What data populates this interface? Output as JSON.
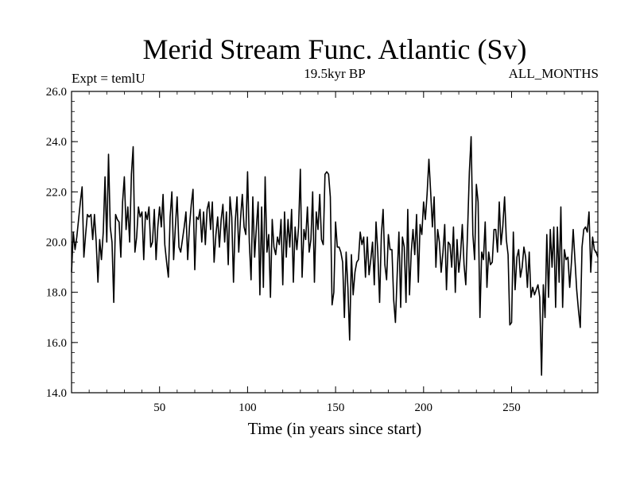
{
  "chart_data": {
    "type": "line",
    "title": "Merid Stream Func. Atlantic (Sv)",
    "subtitle_left": "Expt = temlU",
    "subtitle_center": "19.5kyr BP",
    "subtitle_right": "ALL_MONTHS",
    "xlabel": "Time (in years since start)",
    "ylabel": "",
    "xlim": [
      0,
      299
    ],
    "ylim": [
      14.0,
      26.0
    ],
    "xticks": [
      50,
      100,
      150,
      200,
      250
    ],
    "yticks": [
      14.0,
      16.0,
      18.0,
      20.0,
      22.0,
      24.0,
      26.0
    ],
    "ytick_labels": [
      "14.0",
      "16.0",
      "18.0",
      "20.0",
      "22.0",
      "24.0",
      "26.0"
    ],
    "series": [
      {
        "name": "Merid Stream Func. Atlantic",
        "anchors": [
          [
            0,
            18.8
          ],
          [
            1,
            20.4
          ],
          [
            2,
            19.7
          ],
          [
            3,
            20.2
          ],
          [
            5,
            21.6
          ],
          [
            6,
            22.2
          ],
          [
            7,
            19.4
          ],
          [
            8,
            20.3
          ],
          [
            9,
            21.1
          ],
          [
            10,
            21.0
          ],
          [
            11,
            21.1
          ],
          [
            12,
            20.1
          ],
          [
            13,
            21.1
          ],
          [
            14,
            20.0
          ],
          [
            15,
            18.4
          ],
          [
            16,
            20.1
          ],
          [
            17,
            19.3
          ],
          [
            18,
            20.4
          ],
          [
            19,
            22.6
          ],
          [
            20,
            20.0
          ],
          [
            21,
            23.5
          ],
          [
            22,
            20.6
          ],
          [
            23,
            20.0
          ],
          [
            24,
            17.6
          ],
          [
            25,
            21.1
          ],
          [
            26,
            20.9
          ],
          [
            27,
            20.8
          ],
          [
            28,
            19.4
          ],
          [
            29,
            21.6
          ],
          [
            30,
            22.6
          ],
          [
            31,
            20.5
          ],
          [
            32,
            21.4
          ],
          [
            33,
            20.0
          ],
          [
            34,
            22.7
          ],
          [
            35,
            23.8
          ],
          [
            36,
            19.6
          ],
          [
            37,
            20.2
          ],
          [
            38,
            21.4
          ],
          [
            39,
            21.0
          ],
          [
            40,
            21.2
          ],
          [
            41,
            19.3
          ],
          [
            42,
            21.2
          ],
          [
            43,
            20.9
          ],
          [
            44,
            21.4
          ],
          [
            45,
            19.8
          ],
          [
            46,
            20.0
          ],
          [
            47,
            21.3
          ],
          [
            48,
            19.3
          ],
          [
            49,
            20.6
          ],
          [
            50,
            21.4
          ],
          [
            51,
            20.6
          ],
          [
            52,
            21.9
          ],
          [
            53,
            19.9
          ],
          [
            54,
            19.2
          ],
          [
            55,
            18.6
          ],
          [
            56,
            21.0
          ],
          [
            57,
            22.0
          ],
          [
            58,
            19.3
          ],
          [
            59,
            20.6
          ],
          [
            60,
            21.8
          ],
          [
            61,
            19.8
          ],
          [
            62,
            19.6
          ],
          [
            63,
            20.1
          ],
          [
            64,
            20.6
          ],
          [
            65,
            21.2
          ],
          [
            66,
            19.3
          ],
          [
            67,
            20.6
          ],
          [
            68,
            21.5
          ],
          [
            69,
            22.1
          ],
          [
            70,
            18.9
          ],
          [
            71,
            21.0
          ],
          [
            72,
            20.9
          ],
          [
            73,
            21.3
          ],
          [
            74,
            20.0
          ],
          [
            75,
            21.2
          ],
          [
            76,
            19.9
          ],
          [
            77,
            21.3
          ],
          [
            78,
            21.6
          ],
          [
            79,
            20.5
          ],
          [
            80,
            21.6
          ],
          [
            81,
            19.2
          ],
          [
            82,
            20.3
          ],
          [
            83,
            21.0
          ],
          [
            84,
            19.8
          ],
          [
            85,
            20.9
          ],
          [
            86,
            21.5
          ],
          [
            87,
            20.0
          ],
          [
            88,
            21.2
          ],
          [
            89,
            19.1
          ],
          [
            90,
            21.8
          ],
          [
            91,
            21.0
          ],
          [
            92,
            18.4
          ],
          [
            93,
            20.8
          ],
          [
            94,
            21.8
          ],
          [
            95,
            19.6
          ],
          [
            96,
            20.9
          ],
          [
            97,
            21.9
          ],
          [
            98,
            20.6
          ],
          [
            99,
            20.3
          ],
          [
            100,
            22.8
          ],
          [
            101,
            20.0
          ],
          [
            102,
            18.5
          ],
          [
            103,
            21.8
          ],
          [
            104,
            19.4
          ],
          [
            105,
            20.6
          ],
          [
            106,
            21.6
          ],
          [
            107,
            17.9
          ],
          [
            108,
            21.4
          ],
          [
            109,
            18.2
          ],
          [
            110,
            22.6
          ],
          [
            111,
            19.6
          ],
          [
            112,
            20.3
          ],
          [
            113,
            17.8
          ],
          [
            114,
            20.9
          ],
          [
            115,
            19.8
          ],
          [
            116,
            19.5
          ],
          [
            117,
            20.2
          ],
          [
            118,
            19.9
          ],
          [
            119,
            20.9
          ],
          [
            120,
            18.3
          ],
          [
            121,
            21.2
          ],
          [
            122,
            19.4
          ],
          [
            123,
            20.9
          ],
          [
            124,
            19.8
          ],
          [
            125,
            21.3
          ],
          [
            126,
            18.4
          ],
          [
            127,
            20.6
          ],
          [
            128,
            19.7
          ],
          [
            129,
            20.6
          ],
          [
            130,
            22.9
          ],
          [
            131,
            18.6
          ],
          [
            132,
            20.5
          ],
          [
            133,
            20.1
          ],
          [
            134,
            21.4
          ],
          [
            135,
            19.6
          ],
          [
            136,
            20.1
          ],
          [
            137,
            22.0
          ],
          [
            138,
            18.4
          ],
          [
            139,
            21.2
          ],
          [
            140,
            20.5
          ],
          [
            141,
            21.9
          ],
          [
            142,
            20.1
          ],
          [
            143,
            19.9
          ],
          [
            144,
            22.7
          ],
          [
            145,
            22.8
          ],
          [
            146,
            22.7
          ],
          [
            147,
            21.8
          ],
          [
            148,
            17.5
          ],
          [
            149,
            18.0
          ],
          [
            150,
            20.8
          ],
          [
            151,
            19.8
          ],
          [
            152,
            19.8
          ],
          [
            153,
            19.6
          ],
          [
            154,
            19.2
          ],
          [
            155,
            17.0
          ],
          [
            156,
            19.6
          ],
          [
            157,
            18.2
          ],
          [
            158,
            16.1
          ],
          [
            159,
            19.5
          ],
          [
            160,
            17.9
          ],
          [
            161,
            18.8
          ],
          [
            162,
            19.2
          ],
          [
            163,
            19.3
          ],
          [
            164,
            20.4
          ],
          [
            165,
            19.9
          ],
          [
            166,
            20.2
          ],
          [
            167,
            18.6
          ],
          [
            168,
            20.2
          ],
          [
            169,
            18.7
          ],
          [
            170,
            19.3
          ],
          [
            171,
            20.0
          ],
          [
            172,
            18.3
          ],
          [
            173,
            20.8
          ],
          [
            174,
            19.6
          ],
          [
            175,
            17.6
          ],
          [
            176,
            20.3
          ],
          [
            177,
            21.3
          ],
          [
            178,
            19.1
          ],
          [
            179,
            18.5
          ],
          [
            180,
            20.3
          ],
          [
            181,
            19.7
          ],
          [
            182,
            19.7
          ],
          [
            183,
            17.7
          ],
          [
            184,
            16.8
          ],
          [
            185,
            18.7
          ],
          [
            186,
            20.4
          ],
          [
            187,
            17.4
          ],
          [
            188,
            20.2
          ],
          [
            189,
            19.8
          ],
          [
            190,
            17.6
          ],
          [
            191,
            21.3
          ],
          [
            192,
            17.9
          ],
          [
            193,
            19.6
          ],
          [
            194,
            20.5
          ],
          [
            195,
            19.5
          ],
          [
            196,
            21.1
          ],
          [
            197,
            18.4
          ],
          [
            198,
            20.7
          ],
          [
            199,
            20.3
          ],
          [
            200,
            21.6
          ],
          [
            201,
            20.9
          ],
          [
            202,
            21.9
          ],
          [
            203,
            23.3
          ],
          [
            204,
            22.0
          ],
          [
            205,
            20.6
          ],
          [
            206,
            21.8
          ],
          [
            207,
            19.0
          ],
          [
            208,
            20.5
          ],
          [
            209,
            20.0
          ],
          [
            210,
            18.8
          ],
          [
            211,
            19.6
          ],
          [
            212,
            20.7
          ],
          [
            213,
            18.1
          ],
          [
            214,
            20.0
          ],
          [
            215,
            19.9
          ],
          [
            216,
            19.0
          ],
          [
            217,
            20.6
          ],
          [
            218,
            18.0
          ],
          [
            219,
            20.1
          ],
          [
            220,
            18.8
          ],
          [
            221,
            19.5
          ],
          [
            222,
            20.7
          ],
          [
            223,
            19.1
          ],
          [
            224,
            18.3
          ],
          [
            225,
            20.5
          ],
          [
            226,
            22.8
          ],
          [
            227,
            24.2
          ],
          [
            228,
            20.3
          ],
          [
            229,
            19.3
          ],
          [
            230,
            22.3
          ],
          [
            231,
            21.6
          ],
          [
            232,
            17.0
          ],
          [
            233,
            19.6
          ],
          [
            234,
            19.3
          ],
          [
            235,
            20.8
          ],
          [
            236,
            18.2
          ],
          [
            237,
            19.6
          ],
          [
            238,
            19.1
          ],
          [
            239,
            19.2
          ],
          [
            240,
            20.5
          ],
          [
            241,
            20.5
          ],
          [
            242,
            19.6
          ],
          [
            243,
            21.6
          ],
          [
            244,
            19.9
          ],
          [
            245,
            20.6
          ],
          [
            246,
            21.8
          ],
          [
            247,
            20.1
          ],
          [
            248,
            19.5
          ],
          [
            249,
            16.7
          ],
          [
            250,
            16.8
          ],
          [
            251,
            20.4
          ],
          [
            252,
            18.1
          ],
          [
            253,
            19.4
          ],
          [
            254,
            19.7
          ],
          [
            255,
            18.6
          ],
          [
            256,
            19.0
          ],
          [
            257,
            19.8
          ],
          [
            258,
            19.4
          ],
          [
            259,
            18.2
          ],
          [
            260,
            19.6
          ],
          [
            261,
            17.8
          ],
          [
            262,
            18.2
          ],
          [
            263,
            17.9
          ],
          [
            264,
            18.1
          ],
          [
            265,
            18.3
          ],
          [
            266,
            17.8
          ],
          [
            267,
            14.7
          ],
          [
            268,
            18.3
          ],
          [
            269,
            17.0
          ],
          [
            270,
            20.3
          ],
          [
            271,
            17.8
          ],
          [
            272,
            20.5
          ],
          [
            273,
            19.0
          ],
          [
            274,
            20.6
          ],
          [
            275,
            17.4
          ],
          [
            276,
            20.6
          ],
          [
            277,
            18.4
          ],
          [
            278,
            21.4
          ],
          [
            279,
            17.4
          ],
          [
            280,
            19.7
          ],
          [
            281,
            19.3
          ],
          [
            282,
            19.4
          ],
          [
            283,
            18.2
          ],
          [
            284,
            19.2
          ],
          [
            285,
            20.5
          ],
          [
            286,
            19.3
          ],
          [
            287,
            18.1
          ],
          [
            288,
            17.3
          ],
          [
            289,
            16.6
          ],
          [
            290,
            19.8
          ],
          [
            291,
            20.5
          ],
          [
            292,
            20.6
          ],
          [
            293,
            20.4
          ],
          [
            294,
            21.2
          ],
          [
            295,
            18.8
          ],
          [
            296,
            20.2
          ],
          [
            297,
            19.7
          ],
          [
            298,
            19.6
          ],
          [
            299,
            19.4
          ]
        ]
      }
    ]
  }
}
